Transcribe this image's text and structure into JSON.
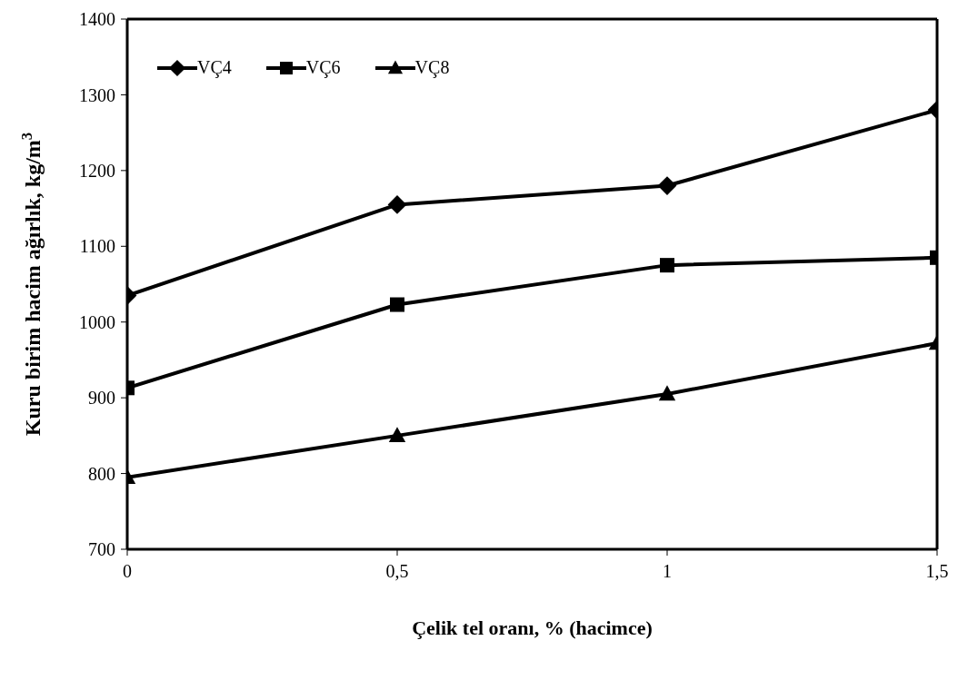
{
  "chart_data": {
    "type": "line",
    "xlabel": "Çelik tel oranı, % (hacimce)",
    "ylabel": "Kuru birim hacim ağırlık, kg/m$^{3}$",
    "x": [
      0,
      0.5,
      1,
      1.5
    ],
    "series": [
      {
        "name": "VÇ4",
        "color": "#000000",
        "marker": "diamond",
        "values": [
          1035,
          1155,
          1180,
          1280
        ]
      },
      {
        "name": "VÇ6",
        "color": "#000000",
        "marker": "square",
        "values": [
          913,
          1023,
          1075,
          1085
        ]
      },
      {
        "name": "VÇ8",
        "color": "#000000",
        "marker": "triangle",
        "values": [
          795,
          850,
          905,
          972
        ]
      }
    ],
    "xlim": [
      0,
      1.5
    ],
    "xticks": [
      0,
      {
        "value": 0.5,
        "label": "0,5"
      },
      1,
      {
        "value": 1.5,
        "label": "1,5"
      }
    ],
    "ylim": [
      700,
      1400
    ],
    "yticks": [
      700,
      800,
      900,
      1000,
      1100,
      1200,
      1300,
      1400
    ],
    "grid": false,
    "legend": "top left",
    "line_style": "solid"
  }
}
